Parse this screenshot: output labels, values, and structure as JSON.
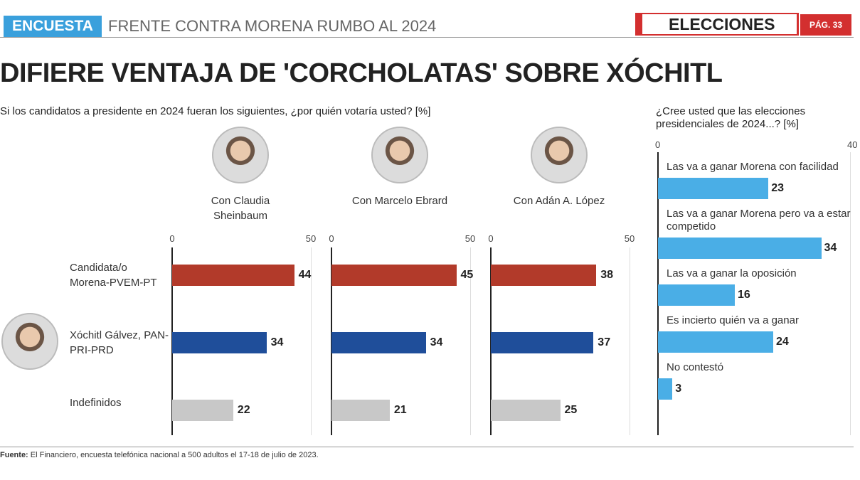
{
  "header": {
    "tag": "ENCUESTA",
    "section": "FRENTE CONTRA MORENA RUMBO AL 2024",
    "label": "ELECCIONES",
    "page": "PÁG. 33"
  },
  "title": "DIFIERE VENTAJA DE 'CORCHOLATAS' SOBRE XÓCHITL",
  "source_label": "Fuente:",
  "source": "El Financiero, encuesta telefónica nacional a 500 adultos el 17-18 de julio de 2023.",
  "chart_data": [
    {
      "type": "bar",
      "orientation": "horizontal",
      "subtitle": "Si los candidatos a presidente en 2024 fueran los siguientes, ¿por quién votaría usted?  [%]",
      "categories": [
        "Candidata/o Morena-PVEM-PT",
        "Xóchitl Gálvez, PAN-PRI-PRD",
        "Indefinidos"
      ],
      "colors": [
        "#b23a2a",
        "#1f4e9a",
        "#c8c8c8"
      ],
      "xlim": [
        0,
        50
      ],
      "xticks": [
        0,
        50
      ],
      "grid": true,
      "series": [
        {
          "name": "Con Claudia Sheinbaum",
          "values": [
            44,
            34,
            22
          ]
        },
        {
          "name": "Con Marcelo Ebrard",
          "values": [
            45,
            34,
            21
          ]
        },
        {
          "name": "Con Adán A. López",
          "values": [
            38,
            37,
            25
          ]
        }
      ]
    },
    {
      "type": "bar",
      "orientation": "horizontal",
      "subtitle": "¿Cree usted que las elecciones presidenciales de 2024...?  [%]",
      "categories": [
        "Las va a ganar Morena con facilidad",
        "Las va a ganar Morena pero va a estar competido",
        "Las va a ganar la oposición",
        "Es incierto quién va a ganar",
        "No contestó"
      ],
      "values": [
        23,
        34,
        16,
        24,
        3
      ],
      "color": "#4aaee6",
      "xlim": [
        0,
        40
      ],
      "xticks": [
        0,
        40
      ],
      "grid": true
    }
  ]
}
